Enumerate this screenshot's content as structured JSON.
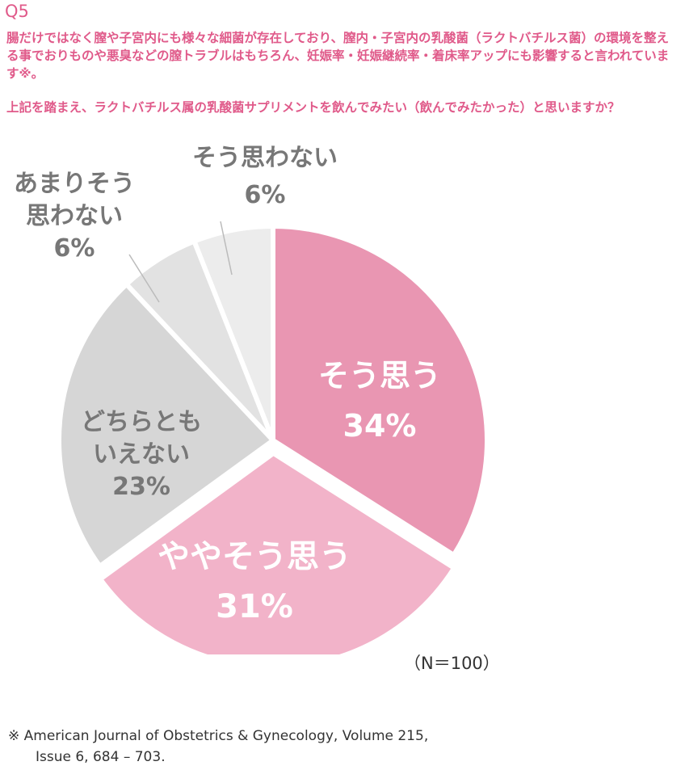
{
  "question_number": "Q5",
  "intro_text": "腸だけではなく膣や子宮内にも様々な細菌が存在しており、膣内・子宮内の乳酸菌（ラクトバチルス菌）の環境を整える事でおりものや悪臭などの膣トラブルはもちろん、妊娠率・妊娠継続率・着床率アップにも影響すると言われています※。",
  "question_text": "上記を踏まえ、ラクトバチルス属の乳酸菌サプリメントを飲んでみたい（飲んでみたかった）と思いますか？",
  "sample_note": "（N＝100）",
  "footnote": {
    "line1": "※ American Journal of Obstetrics & Gynecology, Volume 215,",
    "line2": "Issue 6, 684 – 703."
  },
  "chart_data": {
    "type": "pie",
    "title": "",
    "unit": "%",
    "start_angle_deg": 0,
    "direction": "clockwise",
    "slices": [
      {
        "label_lines": [
          "そう思う"
        ],
        "value": 34,
        "value_label": "34%",
        "color": "#e996b2",
        "text_color": "#ffffff",
        "exploded": false
      },
      {
        "label_lines": [
          "ややそう思う"
        ],
        "value": 31,
        "value_label": "31%",
        "color": "#f2b3c9",
        "text_color": "#ffffff",
        "exploded": true
      },
      {
        "label_lines": [
          "どちらとも",
          "いえない"
        ],
        "value": 23,
        "value_label": "23%",
        "color": "#d6d6d6",
        "text_color": "#777777",
        "exploded": false
      },
      {
        "label_lines": [
          "あまりそう",
          "思わない"
        ],
        "value": 6,
        "value_label": "6%",
        "color": "#e2e2e2",
        "text_color": "#777777",
        "exploded": false,
        "outside": true
      },
      {
        "label_lines": [
          "そう思わない"
        ],
        "value": 6,
        "value_label": "6%",
        "color": "#ececec",
        "text_color": "#777777",
        "exploded": false,
        "outside": true
      }
    ]
  }
}
